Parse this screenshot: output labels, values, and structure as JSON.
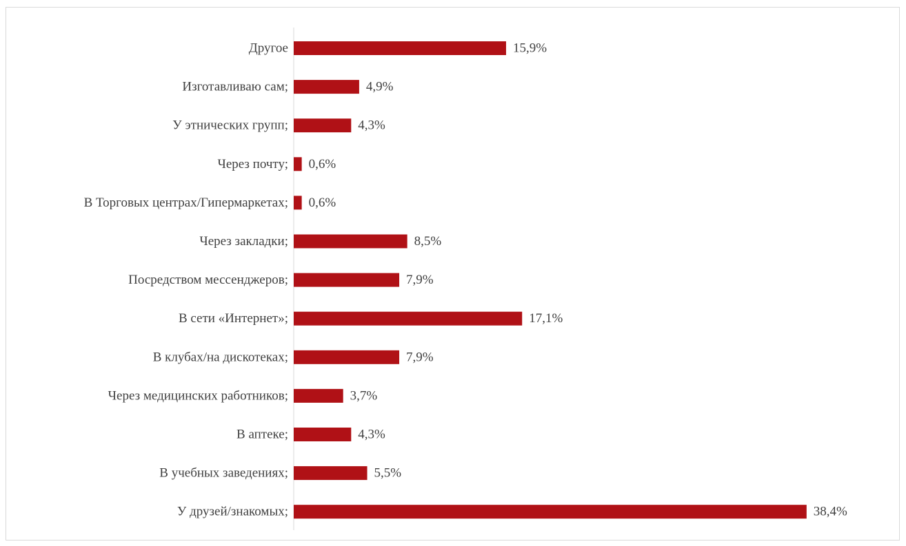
{
  "chart_data": {
    "type": "bar",
    "orientation": "horizontal",
    "categories": [
      "Другое",
      "Изготавливаю сам;",
      "У этнических групп;",
      "Через почту;",
      "В Торговых центрах/Гипермаркетах;",
      "Через закладки;",
      "Посредством мессенджеров;",
      "В сети «Интернет»;",
      "В клубах/на дискотеках;",
      "Через медицинских работников;",
      "В аптеке;",
      "В учебных заведениях;",
      "У друзей/знакомых;"
    ],
    "values": [
      15.9,
      4.9,
      4.3,
      0.6,
      0.6,
      8.5,
      7.9,
      17.1,
      7.9,
      3.7,
      4.3,
      5.5,
      38.4
    ],
    "value_labels": [
      "15,9%",
      "4,9%",
      "4,3%",
      "0,6%",
      "0,6%",
      "8,5%",
      "7,9%",
      "17,1%",
      "7,9%",
      "3,7%",
      "4,3%",
      "5,5%",
      "38,4%"
    ],
    "bar_color": "#b01116",
    "grid": false,
    "legend": "none"
  }
}
